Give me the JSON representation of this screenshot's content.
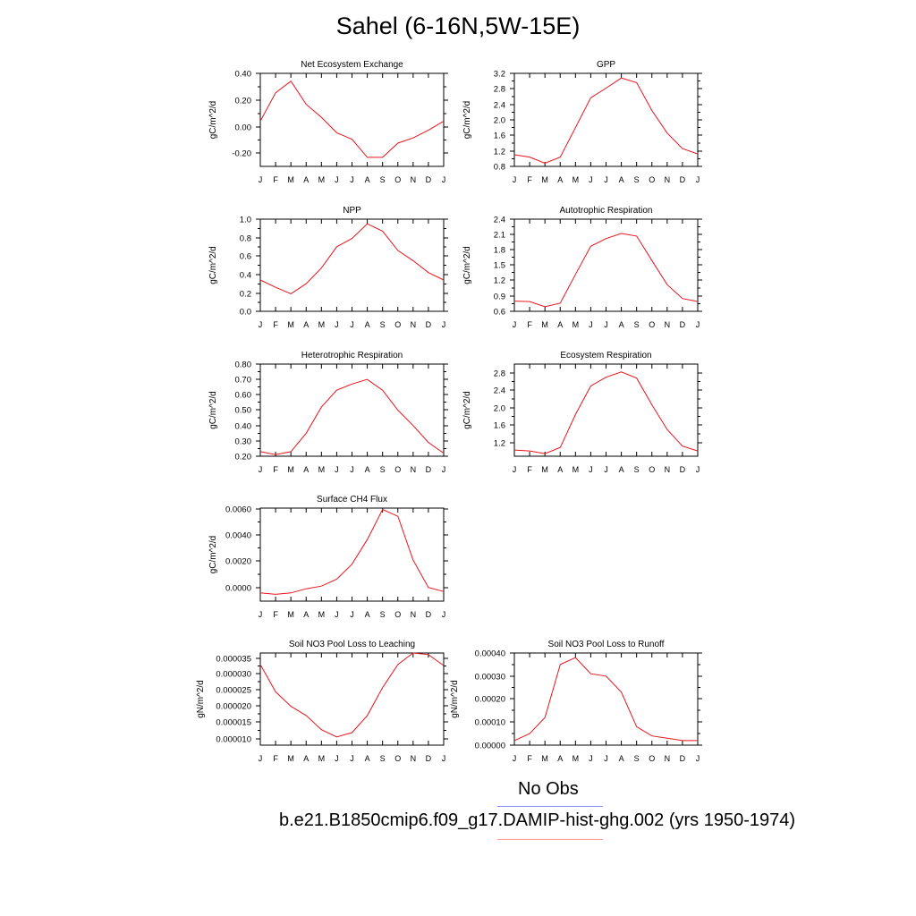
{
  "title": "Sahel (6-16N,5W-15E)",
  "colors": {
    "model_line": "#e8141c",
    "obs_legend_line": "#8c8cff",
    "model_legend_line": "#ff9a9a"
  },
  "legend": {
    "obs_label": "No Obs",
    "model_label": "b.e21.B1850cmip6.f09_g17.DAMIP-hist-ghg.002 (yrs 1950-1974)"
  },
  "chart_data": [
    {
      "type": "line",
      "title": "Net Ecosystem Exchange",
      "ylabel": "gC/m^2/d",
      "x": [
        "J",
        "F",
        "M",
        "A",
        "M",
        "J",
        "J",
        "A",
        "S",
        "O",
        "N",
        "D",
        "J"
      ],
      "ylim": [
        -0.32,
        0.4
      ],
      "yticks": [
        "0.40",
        "0.20",
        "0.00",
        "-0.20"
      ],
      "series": [
        {
          "values": [
            0.03,
            0.25,
            0.34,
            0.16,
            0.06,
            -0.06,
            -0.11,
            -0.25,
            -0.25,
            -0.14,
            -0.1,
            -0.04,
            0.03
          ]
        }
      ]
    },
    {
      "type": "line",
      "title": "GPP",
      "ylabel": "gC/m^2/d",
      "x": [
        "J",
        "F",
        "M",
        "A",
        "M",
        "J",
        "J",
        "A",
        "S",
        "O",
        "N",
        "D",
        "J"
      ],
      "ylim": [
        0.8,
        3.2
      ],
      "yticks": [
        "3.2",
        "2.8",
        "2.4",
        "2.0",
        "1.6",
        "1.2",
        "0.8"
      ],
      "series": [
        {
          "values": [
            1.1,
            1.04,
            0.88,
            1.04,
            1.8,
            2.57,
            2.82,
            3.08,
            2.96,
            2.24,
            1.66,
            1.26,
            1.12
          ]
        }
      ]
    },
    {
      "type": "line",
      "title": "NPP",
      "ylabel": "gC/m^2/d",
      "x": [
        "J",
        "F",
        "M",
        "A",
        "M",
        "J",
        "J",
        "A",
        "S",
        "O",
        "N",
        "D",
        "J"
      ],
      "ylim": [
        0.0,
        1.0
      ],
      "yticks": [
        "1.0",
        "0.8",
        "0.6",
        "0.4",
        "0.2",
        "0.0"
      ],
      "series": [
        {
          "values": [
            0.34,
            0.26,
            0.19,
            0.3,
            0.47,
            0.7,
            0.79,
            0.95,
            0.87,
            0.66,
            0.55,
            0.42,
            0.34
          ]
        }
      ]
    },
    {
      "type": "line",
      "title": "Autotrophic Respiration",
      "ylabel": "gC/m^2/d",
      "x": [
        "J",
        "F",
        "M",
        "A",
        "M",
        "J",
        "J",
        "A",
        "S",
        "O",
        "N",
        "D",
        "J"
      ],
      "ylim": [
        0.6,
        2.4
      ],
      "yticks": [
        "2.4",
        "2.1",
        "1.8",
        "1.5",
        "1.2",
        "0.9",
        "0.6"
      ],
      "series": [
        {
          "values": [
            0.8,
            0.79,
            0.69,
            0.76,
            1.32,
            1.87,
            2.02,
            2.12,
            2.07,
            1.59,
            1.12,
            0.85,
            0.79
          ]
        }
      ]
    },
    {
      "type": "line",
      "title": "Heterotrophic Respiration",
      "ylabel": "gC/m^2/d",
      "x": [
        "J",
        "F",
        "M",
        "A",
        "M",
        "J",
        "J",
        "A",
        "S",
        "O",
        "N",
        "D",
        "J"
      ],
      "ylim": [
        0.2,
        0.8
      ],
      "yticks": [
        "0.80",
        "0.70",
        "0.60",
        "0.50",
        "0.40",
        "0.30",
        "0.20"
      ],
      "series": [
        {
          "values": [
            0.23,
            0.21,
            0.23,
            0.35,
            0.52,
            0.63,
            0.67,
            0.7,
            0.63,
            0.5,
            0.4,
            0.29,
            0.22
          ]
        }
      ]
    },
    {
      "type": "line",
      "title": "Ecosystem Respiration",
      "ylabel": "gC/m^2/d",
      "x": [
        "J",
        "F",
        "M",
        "A",
        "M",
        "J",
        "J",
        "A",
        "S",
        "O",
        "N",
        "D",
        "J"
      ],
      "ylim": [
        0.9,
        3.0
      ],
      "yticks": [
        "2.8",
        "2.4",
        "2.0",
        "1.6",
        "1.2"
      ],
      "series": [
        {
          "values": [
            1.04,
            1.02,
            0.96,
            1.1,
            1.85,
            2.5,
            2.7,
            2.82,
            2.68,
            2.07,
            1.51,
            1.13,
            1.02
          ]
        }
      ]
    },
    {
      "type": "line",
      "title": "Surface CH4 Flux",
      "ylabel": "gC/m^2/d",
      "x": [
        "J",
        "F",
        "M",
        "A",
        "M",
        "J",
        "J",
        "A",
        "S",
        "O",
        "N",
        "D",
        "J"
      ],
      "ylim": [
        -0.0008,
        0.006
      ],
      "yticks": [
        "0.0060",
        "0.0040",
        "0.0020",
        "0.0000"
      ],
      "series": [
        {
          "values": [
            -0.0002,
            -0.0003,
            -0.0002,
            0.0001,
            0.0003,
            0.0008,
            0.0019,
            0.0037,
            0.0059,
            0.0054,
            0.0022,
            0.0002,
            -0.0001
          ]
        }
      ]
    },
    {
      "type": "line",
      "title": "Soil NO3 Pool Loss to Leaching",
      "ylabel": "gN/m^2/d",
      "x": [
        "J",
        "F",
        "M",
        "A",
        "M",
        "J",
        "J",
        "A",
        "S",
        "O",
        "N",
        "D",
        "J"
      ],
      "ylim": [
        8e-06,
        3.6e-05
      ],
      "yticks": [
        "0.000035",
        "0.000030",
        "0.000025",
        "0.000020",
        "0.000015",
        "0.000010"
      ],
      "series": [
        {
          "values": [
            3.25e-05,
            2.42e-05,
            1.98e-05,
            1.7e-05,
            1.27e-05,
            1.05e-05,
            1.18e-05,
            1.7e-05,
            2.55e-05,
            3.25e-05,
            3.6e-05,
            3.55e-05,
            3.22e-05
          ]
        }
      ]
    },
    {
      "type": "line",
      "title": "Soil NO3 Pool Loss to Runoff",
      "ylabel": "gN/m^2/d",
      "x": [
        "J",
        "F",
        "M",
        "A",
        "M",
        "J",
        "J",
        "A",
        "S",
        "O",
        "N",
        "D",
        "J"
      ],
      "ylim": [
        0.0,
        0.0004
      ],
      "yticks": [
        "0.00040",
        "0.00030",
        "0.00020",
        "0.00010",
        "0.00000"
      ],
      "series": [
        {
          "values": [
            2e-05,
            5e-05,
            0.00012,
            0.00035,
            0.00038,
            0.00031,
            0.0003,
            0.00023,
            8e-05,
            4e-05,
            3e-05,
            2e-05,
            2e-05
          ]
        }
      ]
    }
  ]
}
